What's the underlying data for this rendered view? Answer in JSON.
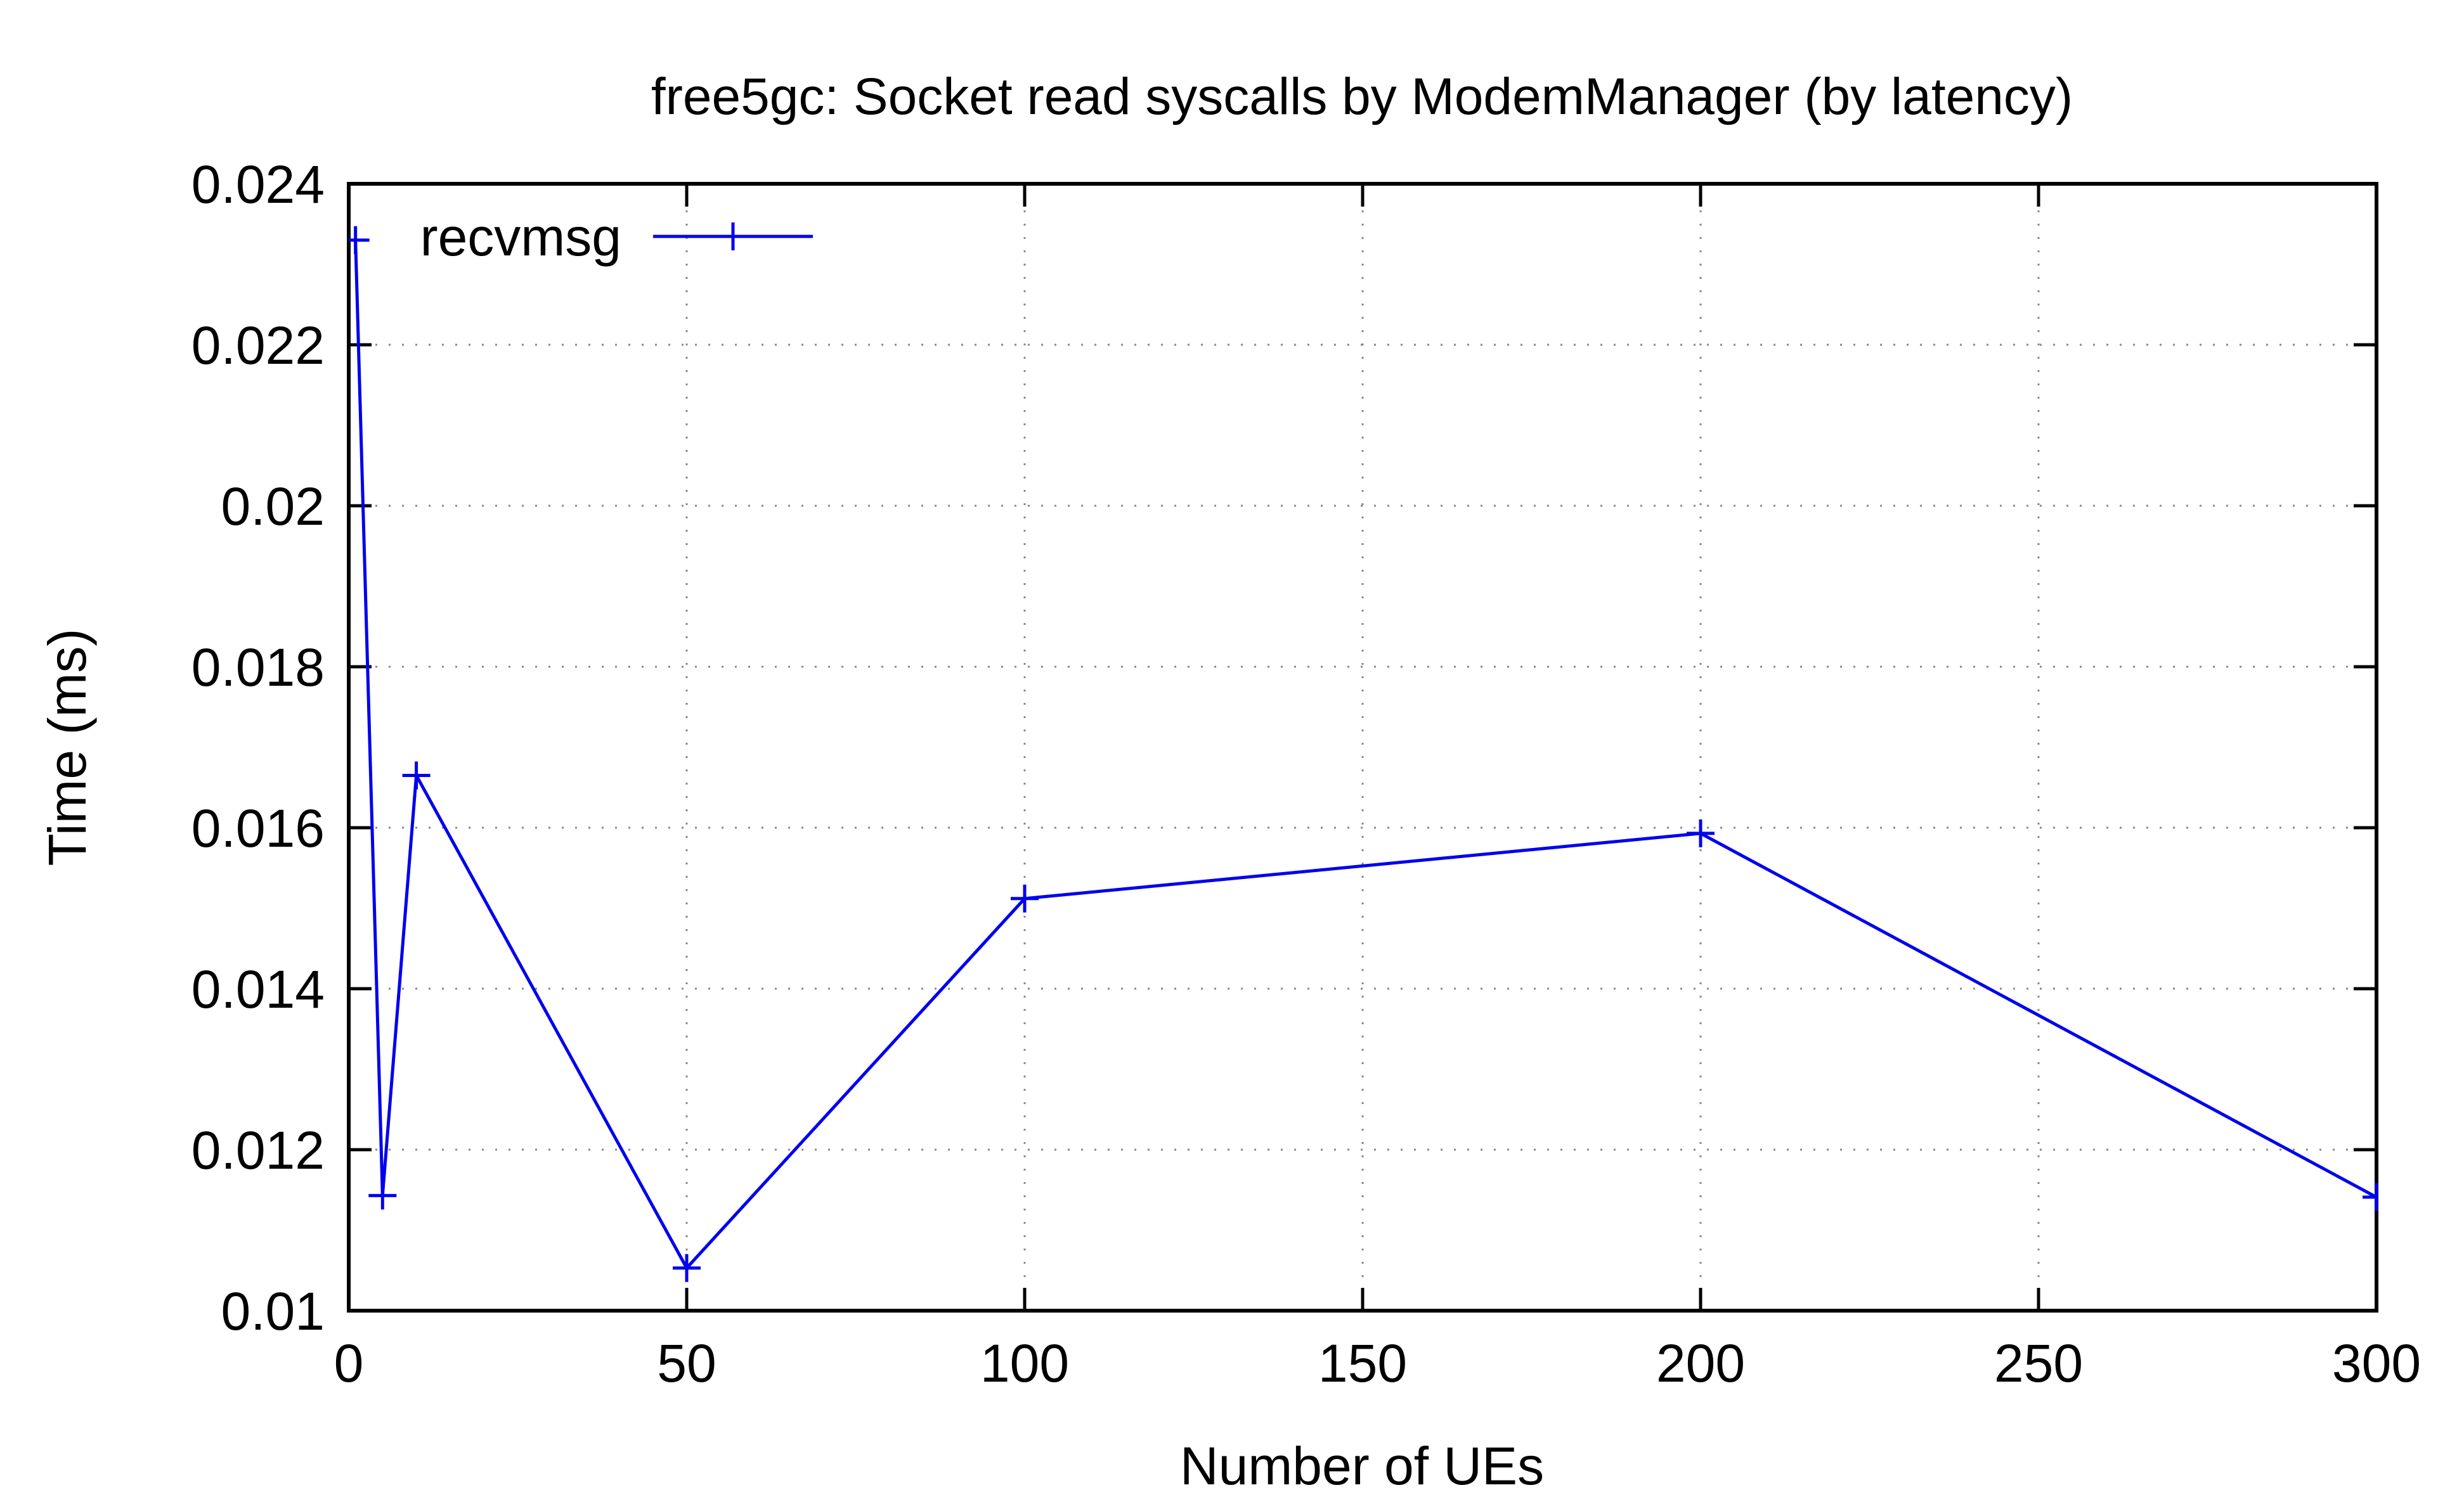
{
  "chart_data": {
    "type": "line",
    "title": "free5gc: Socket read syscalls by ModemManager (by latency)",
    "xlabel": "Number of UEs",
    "ylabel": "Time (ms)",
    "xlim": [
      0,
      300
    ],
    "ylim": [
      0.01,
      0.024
    ],
    "x_ticks": [
      "0",
      "50",
      "100",
      "150",
      "200",
      "250",
      "300"
    ],
    "y_ticks": [
      "0.01",
      "0.012",
      "0.014",
      "0.016",
      "0.018",
      "0.02",
      "0.022",
      "0.024"
    ],
    "x_tick_values": [
      0,
      50,
      100,
      150,
      200,
      250,
      300
    ],
    "y_tick_values": [
      0.01,
      0.012,
      0.014,
      0.016,
      0.018,
      0.02,
      0.022,
      0.024
    ],
    "grid": true,
    "legend_position": "top-left",
    "series": [
      {
        "name": "recvmsg",
        "color": "#0000ee",
        "marker": "plus",
        "x": [
          1,
          5,
          10,
          50,
          100,
          200,
          300
        ],
        "y": [
          0.0233,
          0.01143,
          0.01665,
          0.01053,
          0.01512,
          0.01593,
          0.01141
        ]
      }
    ]
  }
}
